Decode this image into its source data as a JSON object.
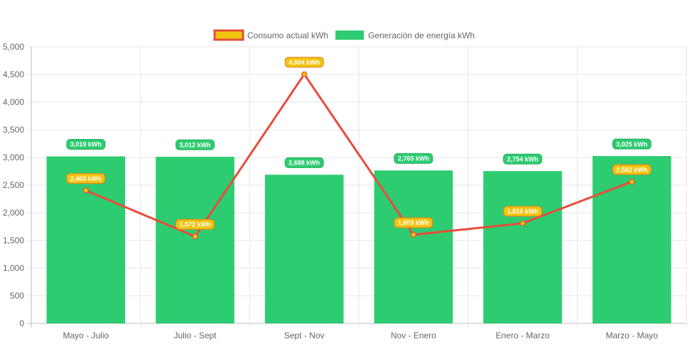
{
  "chart_data": {
    "type": "bar",
    "categories": [
      "Mayo - Julio",
      "Julio - Sept",
      "Sept - Nov",
      "Nov - Enero",
      "Enero - Marzo",
      "Marzo - Mayo"
    ],
    "series": [
      {
        "name": "Consumo actual kWh",
        "type": "line",
        "values": [
          2403,
          1572,
          4504,
          1603,
          1810,
          2562
        ],
        "labels": [
          "2,403 kWh",
          "1,572 kWh",
          "4,504 kWh",
          "1,603 kWh",
          "1,810 kWh",
          "2,562 kWh"
        ],
        "line_color": "#e74c3c",
        "point_color": "#f1c40f"
      },
      {
        "name": "Generación de energía kWh",
        "type": "bar",
        "values": [
          3019,
          3012,
          2688,
          2765,
          2754,
          3025
        ],
        "labels": [
          "3,019 kWh",
          "3,012 kWh",
          "2,688 kWh",
          "2,765 kWh",
          "2,754 kWh",
          "3,025 kWh"
        ],
        "color": "#2ecc71"
      }
    ],
    "ylim": [
      0,
      5000
    ],
    "y_ticks": [
      "0",
      "500",
      "1,000",
      "1,500",
      "2,000",
      "2,500",
      "3,000",
      "3,500",
      "4,000",
      "4,500",
      "5,000"
    ],
    "y_tick_values": [
      0,
      500,
      1000,
      1500,
      2000,
      2500,
      3000,
      3500,
      4000,
      4500,
      5000
    ],
    "grid": true,
    "legend_position": "top-center"
  }
}
